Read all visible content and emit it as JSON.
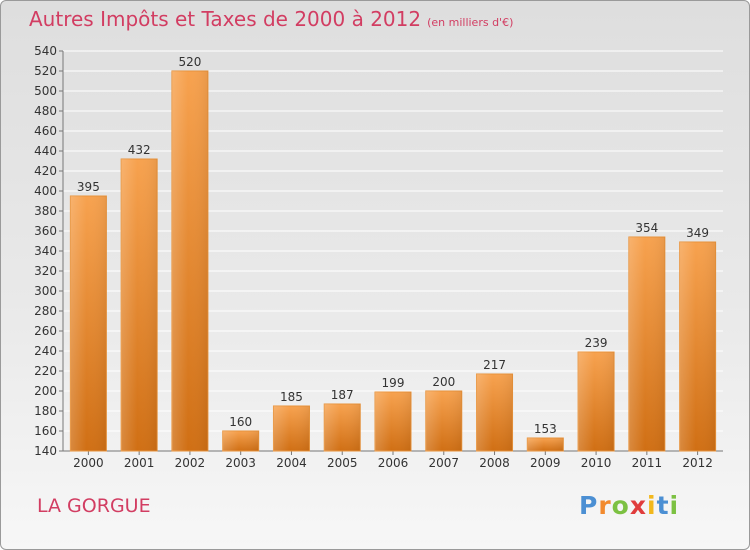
{
  "chart_data": {
    "type": "bar",
    "title": "Autres Impôts et Taxes de 2000 à 2012",
    "unit_note": "(en milliers d'€)",
    "categories": [
      "2000",
      "2001",
      "2002",
      "2003",
      "2004",
      "2005",
      "2006",
      "2007",
      "2008",
      "2009",
      "2010",
      "2011",
      "2012"
    ],
    "values": [
      395,
      432,
      520,
      160,
      185,
      187,
      199,
      200,
      217,
      153,
      239,
      354,
      349
    ],
    "ylim": [
      140,
      540
    ],
    "yticks": [
      140,
      160,
      180,
      200,
      220,
      240,
      260,
      280,
      300,
      320,
      340,
      360,
      380,
      400,
      420,
      440,
      460,
      480,
      500,
      520,
      540
    ],
    "grid": true,
    "xlabel": "",
    "ylabel": "",
    "bar_color_top": "#f7a24f",
    "bar_color_bottom": "#d06f14"
  },
  "commune": "LA GORGUE",
  "logo": {
    "p": "P",
    "r": "r",
    "o": "o",
    "x": "x",
    "i1": "i",
    "t": "t",
    "i2": "i"
  }
}
